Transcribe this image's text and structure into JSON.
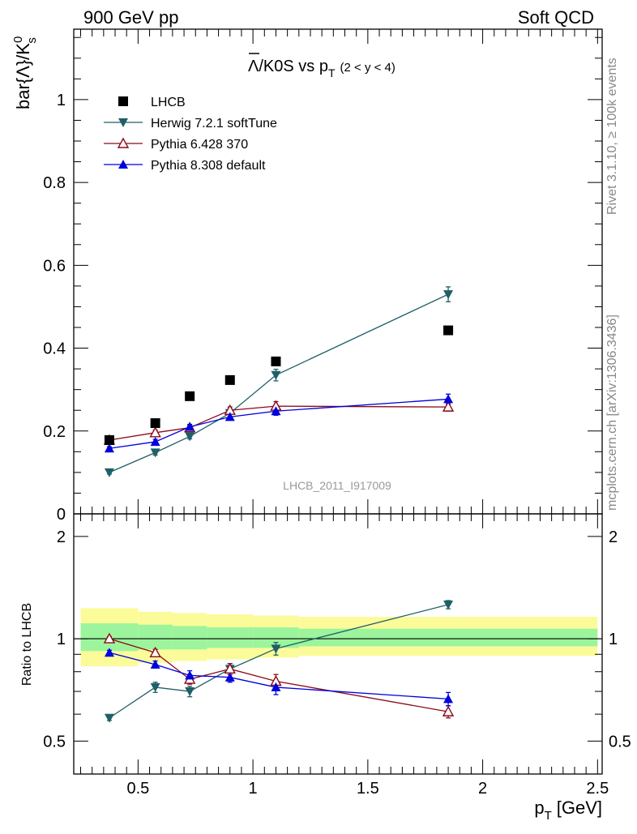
{
  "header": {
    "left": "900 GeV pp",
    "right": "Soft QCD"
  },
  "side_labels": {
    "rivet": "Rivet 3.1.10, ≥ 100k events",
    "mcplots": "mcplots.cern.ch [arXiv:1306.3436]"
  },
  "watermark": "LHCB_2011_I917009",
  "title": {
    "main": "Λ/K0S vs p",
    "sub": "T",
    "cut": "(2 < y < 4)"
  },
  "colors": {
    "lhcb": "#000000",
    "herwig": "#1f5f67",
    "pythia6": "#8b0a1a",
    "pythia8": "#0000dd",
    "band_inner": "#9cf59c",
    "band_outer": "#fbfb9a"
  },
  "chart_data": [
    {
      "type": "scatter",
      "ylabel": "bar{Λ}/K",
      "ylabel_sup": "0",
      "ylabel_sub": "s",
      "xlim": [
        0.22,
        2.52
      ],
      "ylim": [
        0,
        1.17
      ],
      "yticks": [
        0,
        0.2,
        0.4,
        0.6,
        0.8,
        1
      ],
      "yticklabels": [
        "0",
        "0.2",
        "0.4",
        "0.6",
        "0.8",
        "1"
      ],
      "legend_position": "top-left",
      "series": [
        {
          "name": "LHCB",
          "marker": "square",
          "x": [
            0.375,
            0.575,
            0.725,
            0.9,
            1.1,
            1.85
          ],
          "y": [
            0.178,
            0.219,
            0.284,
            0.323,
            0.368,
            0.443
          ]
        },
        {
          "name": "Herwig 7.2.1 softTune",
          "marker": "triangle-down",
          "x": [
            0.375,
            0.575,
            0.725,
            0.9,
            1.1,
            1.85
          ],
          "y": [
            0.1,
            0.148,
            0.187,
            0.243,
            0.335,
            0.53
          ],
          "err": [
            0.004,
            0.006,
            0.006,
            0.008,
            0.014,
            0.018
          ]
        },
        {
          "name": "Pythia 6.428 370",
          "marker": "triangle-up-open",
          "x": [
            0.375,
            0.575,
            0.725,
            0.9,
            1.1,
            1.85
          ],
          "y": [
            0.178,
            0.196,
            0.208,
            0.25,
            0.26,
            0.258
          ],
          "err": [
            0.004,
            0.006,
            0.006,
            0.008,
            0.011,
            0.01
          ]
        },
        {
          "name": "Pythia 8.308 default",
          "marker": "triangle-up",
          "x": [
            0.375,
            0.575,
            0.725,
            0.9,
            1.1,
            1.85
          ],
          "y": [
            0.158,
            0.174,
            0.21,
            0.234,
            0.248,
            0.277
          ],
          "err": [
            0.004,
            0.006,
            0.006,
            0.008,
            0.01,
            0.012
          ]
        }
      ]
    },
    {
      "type": "scatter",
      "ylabel": "Ratio to LHCB",
      "xlabel": "p",
      "xlabel_sub": "T",
      "xlabel_unit": "[GeV]",
      "xlim": [
        0.22,
        2.52
      ],
      "ylim": [
        0.4,
        2.33
      ],
      "ylog": true,
      "xticks": [
        0.5,
        1,
        1.5,
        2,
        2.5
      ],
      "xticklabels": [
        "0.5",
        "1",
        "1.5",
        "2",
        "2.5"
      ],
      "yticks": [
        0.5,
        1,
        2
      ],
      "yticklabels": [
        "0.5",
        "1",
        "2"
      ],
      "bands": {
        "x_edges": [
          0.25,
          0.5,
          0.65,
          0.8,
          1.0,
          1.2,
          2.5
        ],
        "inner": [
          [
            0.92,
            1.11
          ],
          [
            0.93,
            1.1
          ],
          [
            0.93,
            1.09
          ],
          [
            0.94,
            1.08
          ],
          [
            0.94,
            1.08
          ],
          [
            0.95,
            1.07
          ]
        ],
        "outer": [
          [
            0.83,
            1.23
          ],
          [
            0.85,
            1.2
          ],
          [
            0.86,
            1.19
          ],
          [
            0.87,
            1.18
          ],
          [
            0.88,
            1.17
          ],
          [
            0.89,
            1.16
          ]
        ]
      },
      "series": [
        {
          "name": "Herwig 7.2.1 softTune",
          "x": [
            0.375,
            0.575,
            0.725,
            0.9,
            1.1,
            1.85
          ],
          "y": [
            0.585,
            0.72,
            0.7,
            0.815,
            0.935,
            1.26
          ],
          "err": [
            0.01,
            0.025,
            0.025,
            0.03,
            0.04,
            0.035
          ]
        },
        {
          "name": "Pythia 6.428 370",
          "x": [
            0.375,
            0.575,
            0.725,
            0.9,
            1.1,
            1.85
          ],
          "y": [
            1.0,
            0.91,
            0.76,
            0.815,
            0.75,
            0.61
          ],
          "err": [
            0.015,
            0.02,
            0.025,
            0.03,
            0.035,
            0.025
          ]
        },
        {
          "name": "Pythia 8.308 default",
          "x": [
            0.375,
            0.575,
            0.725,
            0.9,
            1.1,
            1.85
          ],
          "y": [
            0.91,
            0.84,
            0.78,
            0.77,
            0.72,
            0.665
          ],
          "err": [
            0.015,
            0.02,
            0.025,
            0.025,
            0.035,
            0.03
          ]
        }
      ]
    }
  ]
}
